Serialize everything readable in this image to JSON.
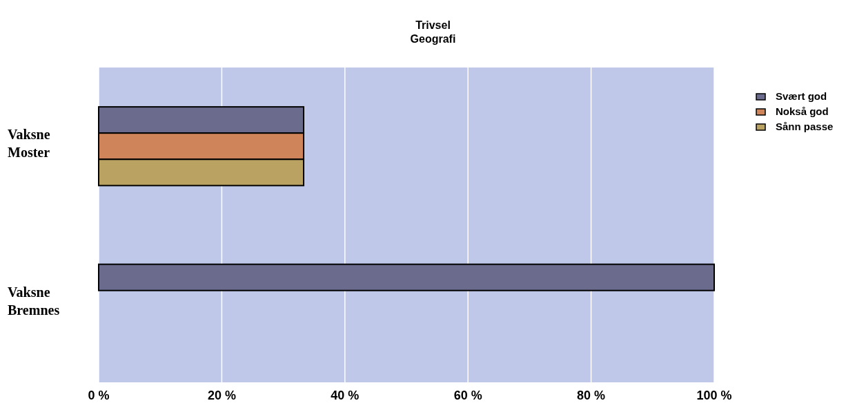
{
  "chart_data": {
    "type": "bar",
    "orientation": "horizontal",
    "title": "Trivsel",
    "subtitle": "Geografi",
    "categories": [
      "Vaksne Moster",
      "Vaksne Bremnes"
    ],
    "series": [
      {
        "name": "Svært god",
        "color": "#6b6b8e",
        "values": [
          33.3,
          100
        ]
      },
      {
        "name": "Nokså god",
        "color": "#d0845a",
        "values": [
          33.3,
          0
        ]
      },
      {
        "name": "Sånn passe",
        "color": "#baa263",
        "values": [
          33.3,
          0
        ]
      }
    ],
    "xlim": [
      0,
      100
    ],
    "xticks": [
      {
        "value": 0,
        "label": "0 %"
      },
      {
        "value": 20,
        "label": "20 %"
      },
      {
        "value": 40,
        "label": "40 %"
      },
      {
        "value": 60,
        "label": "60 %"
      },
      {
        "value": 80,
        "label": "80 %"
      },
      {
        "value": 100,
        "label": "100 %"
      }
    ],
    "grid": "x",
    "legend": "right"
  }
}
